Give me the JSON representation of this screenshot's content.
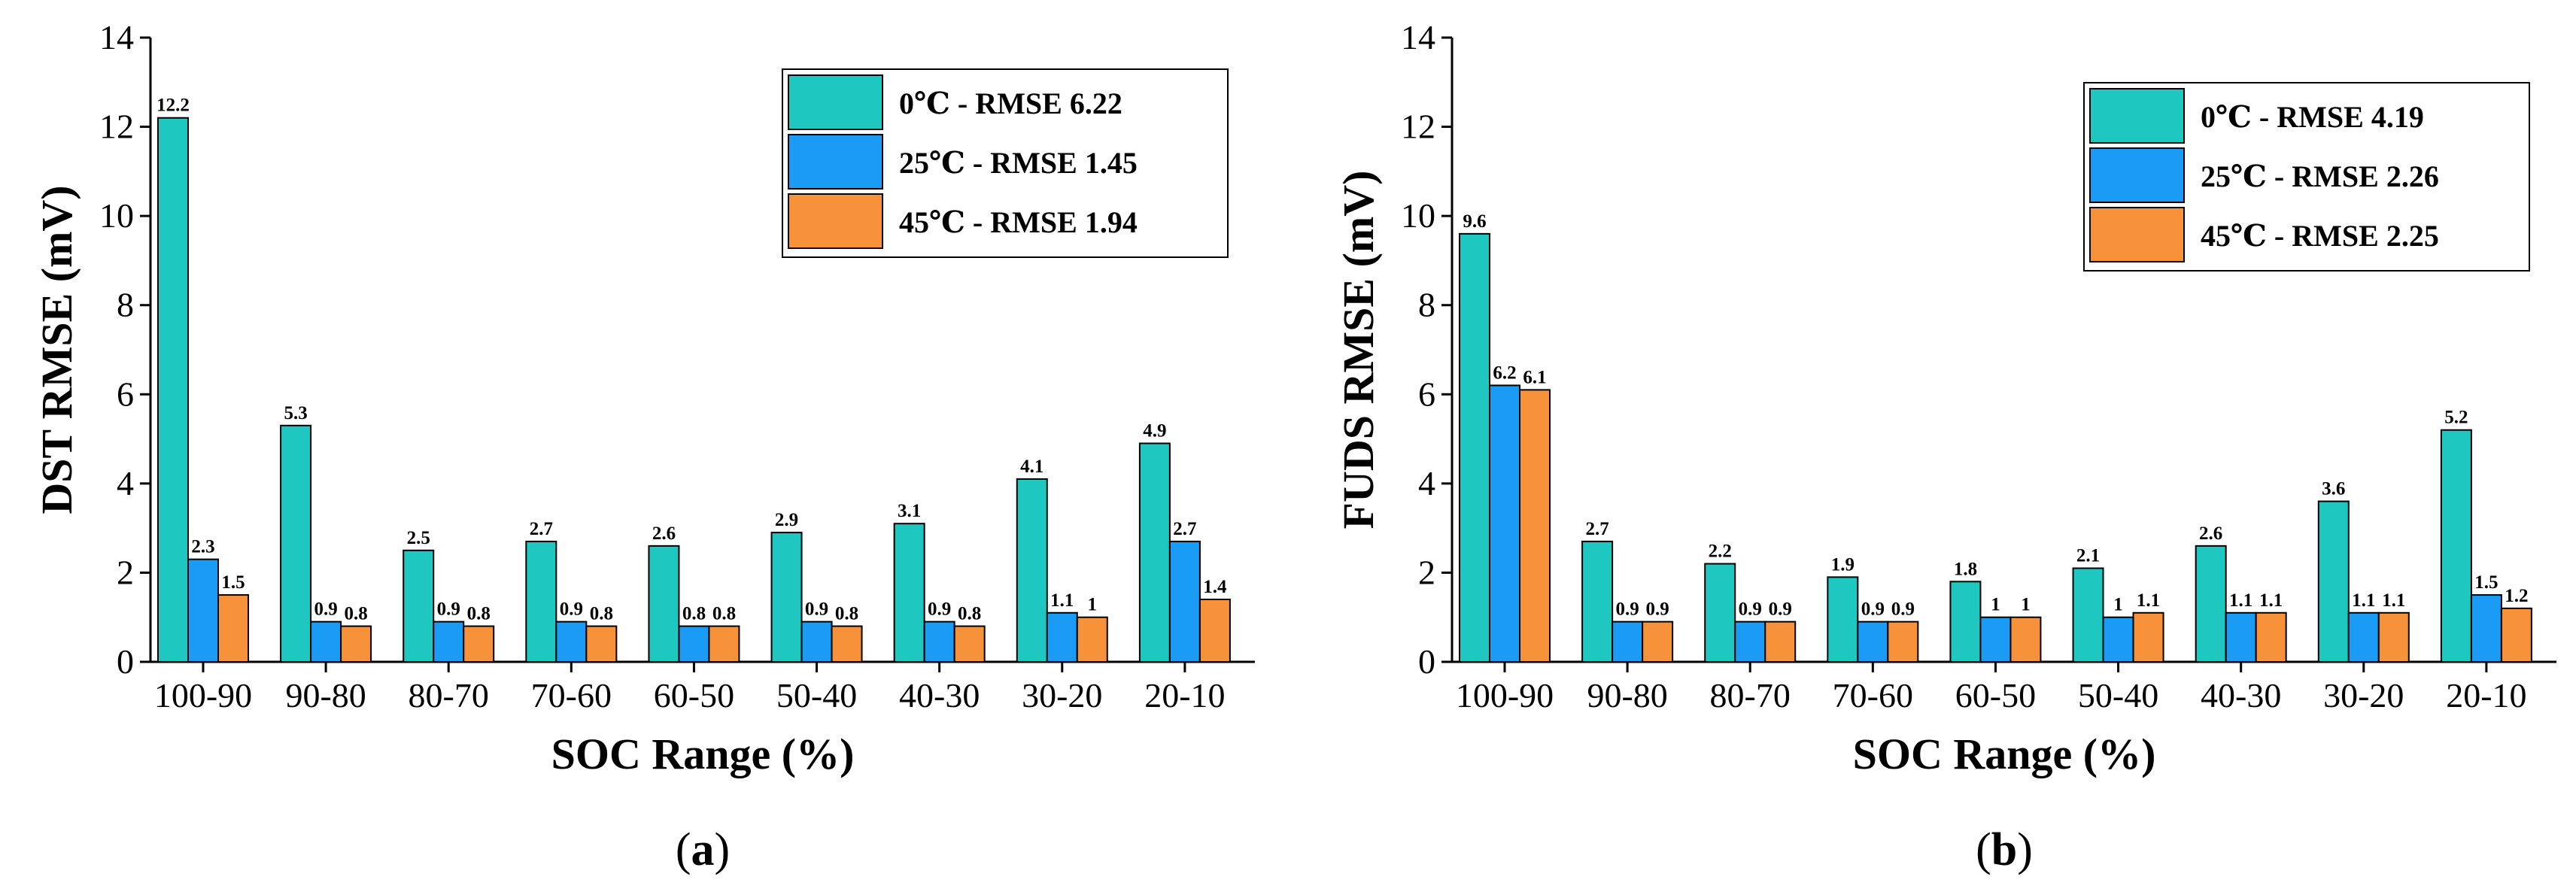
{
  "colors": {
    "s0": "#1ec8c0",
    "s25": "#1a9bf5",
    "s45": "#f7923a"
  },
  "chart_data": [
    {
      "type": "bar",
      "caption_letter": "a",
      "categories": [
        "100-90",
        "90-80",
        "80-70",
        "70-60",
        "60-50",
        "50-40",
        "40-30",
        "30-20",
        "20-10"
      ],
      "series": [
        {
          "name": "0℃ - RMSE 6.22",
          "values": [
            12.2,
            5.3,
            2.5,
            2.7,
            2.6,
            2.9,
            3.1,
            4.1,
            4.9
          ],
          "labels": [
            "12.2",
            "5.3",
            "2.5",
            "2.7",
            "2.6",
            "2.9",
            "3.1",
            "4.1",
            "4.9"
          ]
        },
        {
          "name": "25℃ - RMSE 1.45",
          "values": [
            2.3,
            0.9,
            0.9,
            0.9,
            0.8,
            0.9,
            0.9,
            1.1,
            2.7
          ],
          "labels": [
            "2.3",
            "0.9",
            "0.9",
            "0.9",
            "0.8",
            "0.9",
            "0.9",
            "1.1",
            "2.7"
          ]
        },
        {
          "name": "45℃ - RMSE 1.94",
          "values": [
            1.5,
            0.8,
            0.8,
            0.8,
            0.8,
            0.8,
            0.8,
            1,
            1.4
          ],
          "labels": [
            "1.5",
            "0.8",
            "0.8",
            "0.8",
            "0.8",
            "0.8",
            "0.8",
            "1",
            "1.4"
          ]
        }
      ],
      "xlabel": "SOC Range (%)",
      "ylabel": "DST RMSE (mV)",
      "ylim": [
        0,
        14
      ],
      "yticks": [
        "0",
        "2",
        "4",
        "6",
        "8",
        "10",
        "12",
        "14"
      ],
      "legend_position": "top-right"
    },
    {
      "type": "bar",
      "caption_letter": "b",
      "categories": [
        "100-90",
        "90-80",
        "80-70",
        "70-60",
        "60-50",
        "50-40",
        "40-30",
        "30-20",
        "20-10"
      ],
      "series": [
        {
          "name": "0℃ - RMSE 4.19",
          "values": [
            9.6,
            2.7,
            2.2,
            1.9,
            1.8,
            2.1,
            2.6,
            3.6,
            5.2
          ],
          "labels": [
            "9.6",
            "2.7",
            "2.2",
            "1.9",
            "1.8",
            "2.1",
            "2.6",
            "3.6",
            "5.2"
          ]
        },
        {
          "name": "25℃ - RMSE 2.26",
          "values": [
            6.2,
            0.9,
            0.9,
            0.9,
            1,
            1,
            1.1,
            1.1,
            1.5
          ],
          "labels": [
            "6.2",
            "0.9",
            "0.9",
            "0.9",
            "1",
            "1",
            "1.1",
            "1.1",
            "1.5"
          ]
        },
        {
          "name": "45℃ - RMSE 2.25",
          "values": [
            6.1,
            0.9,
            0.9,
            0.9,
            1,
            1.1,
            1.1,
            1.1,
            1.2
          ],
          "labels": [
            "6.1",
            "0.9",
            "0.9",
            "0.9",
            "1",
            "1.1",
            "1.1",
            "1.1",
            "1.2"
          ]
        }
      ],
      "xlabel": "SOC Range (%)",
      "ylabel": "FUDS RMSE (mV)",
      "ylim": [
        0,
        14
      ],
      "yticks": [
        "0",
        "2",
        "4",
        "6",
        "8",
        "10",
        "12",
        "14"
      ],
      "legend_position": "top-right"
    }
  ]
}
